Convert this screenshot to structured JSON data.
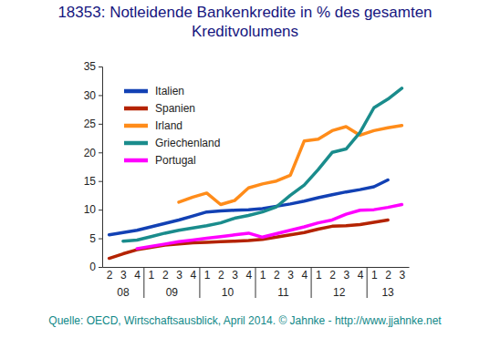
{
  "chart_data": {
    "type": "line",
    "title": "18353: Notleidende Bankenkredite in % des gesamten Kreditvolumens",
    "source": "Quelle: OECD, Wirtschaftsausblick, April 2014. © Jahnke - http://www.jjahnke.net",
    "categories": [
      "2",
      "3",
      "4",
      "1",
      "2",
      "3",
      "4",
      "1",
      "2",
      "3",
      "4",
      "1",
      "2",
      "3",
      "4",
      "1",
      "2",
      "3",
      "4",
      "1",
      "2",
      "3"
    ],
    "category_groups": [
      "08",
      "08",
      "08",
      "09",
      "09",
      "09",
      "09",
      "10",
      "10",
      "10",
      "10",
      "11",
      "11",
      "11",
      "11",
      "12",
      "12",
      "12",
      "12",
      "13",
      "13",
      "13"
    ],
    "ylim": [
      0,
      35
    ],
    "yticks": [
      0,
      5,
      10,
      15,
      20,
      25,
      30,
      35
    ],
    "grid": false,
    "legend": "upper left",
    "series": [
      {
        "name": "Italien",
        "color": "#1241b4",
        "values": [
          5.6,
          6.0,
          6.4,
          7.0,
          7.6,
          8.2,
          8.9,
          9.6,
          9.8,
          9.9,
          10.0,
          10.2,
          10.6,
          11.0,
          11.5,
          12.1,
          12.6,
          13.1,
          13.5,
          14.0,
          15.2,
          null
        ]
      },
      {
        "name": "Spanien",
        "color": "#b42300",
        "values": [
          1.5,
          2.3,
          3.0,
          3.4,
          3.8,
          4.0,
          4.2,
          4.3,
          4.4,
          4.5,
          4.6,
          4.8,
          5.2,
          5.6,
          6.0,
          6.6,
          7.1,
          7.2,
          7.4,
          7.8,
          8.2,
          null
        ]
      },
      {
        "name": "Irland",
        "color": "#ff8c1a",
        "values": [
          null,
          null,
          null,
          null,
          null,
          11.3,
          12.2,
          12.9,
          10.9,
          11.6,
          13.8,
          14.5,
          15.0,
          16.0,
          22.0,
          22.3,
          23.8,
          24.5,
          23.0,
          23.8,
          24.3,
          24.7
        ]
      },
      {
        "name": "Griechenland",
        "color": "#1a8c8c",
        "values": [
          null,
          4.5,
          4.7,
          5.3,
          5.9,
          6.4,
          6.8,
          7.2,
          7.7,
          8.5,
          9.0,
          9.6,
          10.5,
          12.5,
          14.3,
          17.0,
          20.0,
          20.6,
          23.5,
          27.8,
          29.3,
          31.2
        ]
      },
      {
        "name": "Portugal",
        "color": "#ff00ff",
        "values": [
          null,
          null,
          3.2,
          3.6,
          4.0,
          4.4,
          4.7,
          5.0,
          5.3,
          5.6,
          5.9,
          5.2,
          5.8,
          6.4,
          7.0,
          7.7,
          8.2,
          9.2,
          9.9,
          10.0,
          10.4,
          10.9
        ]
      }
    ]
  }
}
